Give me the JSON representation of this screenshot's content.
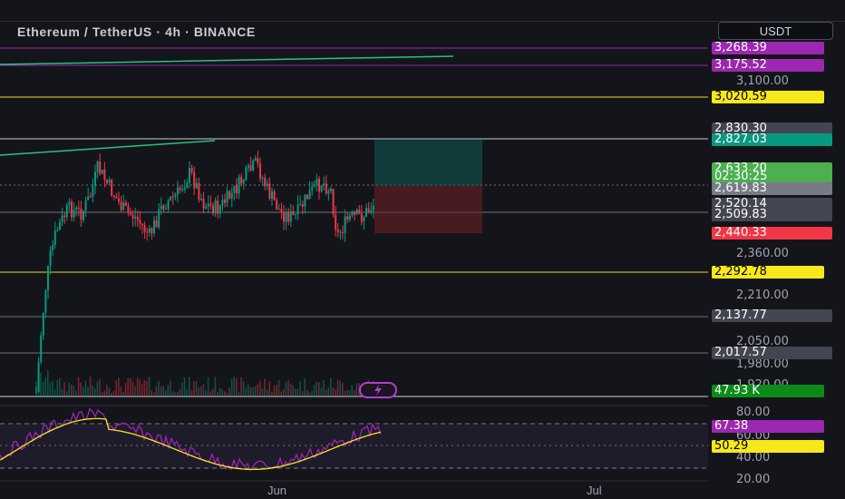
{
  "header": {
    "title": "Ethereum / TetherUS · 4h · BINANCE",
    "currency_button": "USDT"
  },
  "price_axis": {
    "ticks": [
      "3,100.00",
      "2,360.00",
      "2,210.00",
      "2,050.00",
      "1,980.00",
      "1,920.00"
    ]
  },
  "price_tags": [
    {
      "label": "3,268.39",
      "bg": "#9c27b0",
      "fg": "#ffffff"
    },
    {
      "label": "3,175.52",
      "bg": "#9c27b0",
      "fg": "#ffffff"
    },
    {
      "label": "3,020.59",
      "bg": "#f7e81b",
      "fg": "#000000"
    },
    {
      "label": "2,830.30",
      "bg": "#434651",
      "fg": "#ffffff"
    },
    {
      "label": "2,827.03",
      "bg": "#089981",
      "fg": "#ffffff"
    },
    {
      "label": "2,633.20",
      "bg": "#4caf50",
      "fg": "#ffffff"
    },
    {
      "label": "02:30:25",
      "bg": "#4caf50",
      "fg": "#ffffff"
    },
    {
      "label": "2,619.83",
      "bg": "#787b86",
      "fg": "#ffffff"
    },
    {
      "label": "2,520.14",
      "bg": "#434651",
      "fg": "#ffffff"
    },
    {
      "label": "2,509.83",
      "bg": "#434651",
      "fg": "#ffffff"
    },
    {
      "label": "2,440.33",
      "bg": "#f23645",
      "fg": "#ffffff"
    },
    {
      "label": "2,292.78",
      "bg": "#f7e81b",
      "fg": "#000000"
    },
    {
      "label": "2,137.77",
      "bg": "#434651",
      "fg": "#ffffff"
    },
    {
      "label": "2,017.57",
      "bg": "#434651",
      "fg": "#ffffff"
    },
    {
      "label": "47.93 K",
      "bg": "#0b8c18",
      "fg": "#ffffff"
    }
  ],
  "rsi_axis": {
    "ticks": [
      "80.00",
      "60.00",
      "40.00",
      "20.00"
    ]
  },
  "rsi_tags": [
    {
      "label": "67.38",
      "bg": "#9c27b0",
      "fg": "#ffffff"
    },
    {
      "label": "50.29",
      "bg": "#f7e81b",
      "fg": "#000000"
    }
  ],
  "time_axis": {
    "labels": [
      "Jun",
      "Jul"
    ]
  },
  "colors": {
    "up": "#089981",
    "down": "#f23645",
    "rsi": "#9c27b0",
    "rsi_ma": "#f7e81b"
  },
  "icons": {
    "zap": "lightning-icon"
  }
}
